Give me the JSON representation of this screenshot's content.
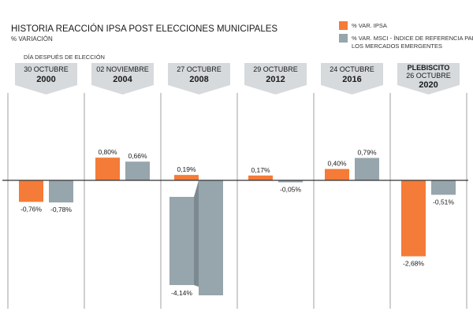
{
  "colors": {
    "ipsa": "#f47b38",
    "msci": "#97a5ac",
    "tab": "#d6dadc",
    "axis": "#333333",
    "divider": "#888888",
    "shadow_msci": "#7c8990",
    "shadow_ipsa": "#b85a14"
  },
  "chart_data": {
    "type": "bar",
    "title": "HISTORIA REACCIÓN IPSA POST ELECCIONES MUNICIPALES",
    "subtitle": "% VARIACIÓN",
    "caption": "DÍA DESPUÉS DE ELECCIÓN",
    "legend_position": "top-right",
    "grid": false,
    "ylim": [
      -4.2,
      1.0
    ],
    "categories": [
      {
        "line1": "30 OCTUBRE",
        "line2": "2000",
        "line0": ""
      },
      {
        "line1": "02 NOVIEMBRE",
        "line2": "2004",
        "line0": ""
      },
      {
        "line1": "27 OCTUBRE",
        "line2": "2008",
        "line0": ""
      },
      {
        "line1": "29 OCTUBRE",
        "line2": "2012",
        "line0": ""
      },
      {
        "line1": "24 OCTUBRE",
        "line2": "2016",
        "line0": ""
      },
      {
        "line1": "26 OCTUBRE",
        "line2": "2020",
        "line0": "PLEBISCITO"
      }
    ],
    "series": [
      {
        "name": "% VAR. IPSA",
        "values": [
          -0.76,
          0.8,
          0.19,
          0.17,
          0.4,
          -2.68
        ],
        "labels": [
          "-0,76%",
          "0,80%",
          "0,19%",
          "0,17%",
          "0,40%",
          "-2,68%"
        ]
      },
      {
        "name": "% VAR. MSCI - ÍNDICE DE REFERENCIA PARA LOS MERCADOS EMERGENTES",
        "values": [
          -0.78,
          0.66,
          -4.14,
          -0.05,
          0.79,
          -0.51
        ],
        "labels": [
          "-0,78%",
          "0,66%",
          "-4,14%",
          "-0,05%",
          "0,79%",
          "-0,51%"
        ]
      }
    ],
    "legend": [
      {
        "lines": [
          "% VAR. IPSA"
        ]
      },
      {
        "lines": [
          "% VAR. MSCI - ÍNDICE DE REFERENCIA PARA",
          "LOS MERCADOS EMERGENTES"
        ]
      }
    ]
  }
}
